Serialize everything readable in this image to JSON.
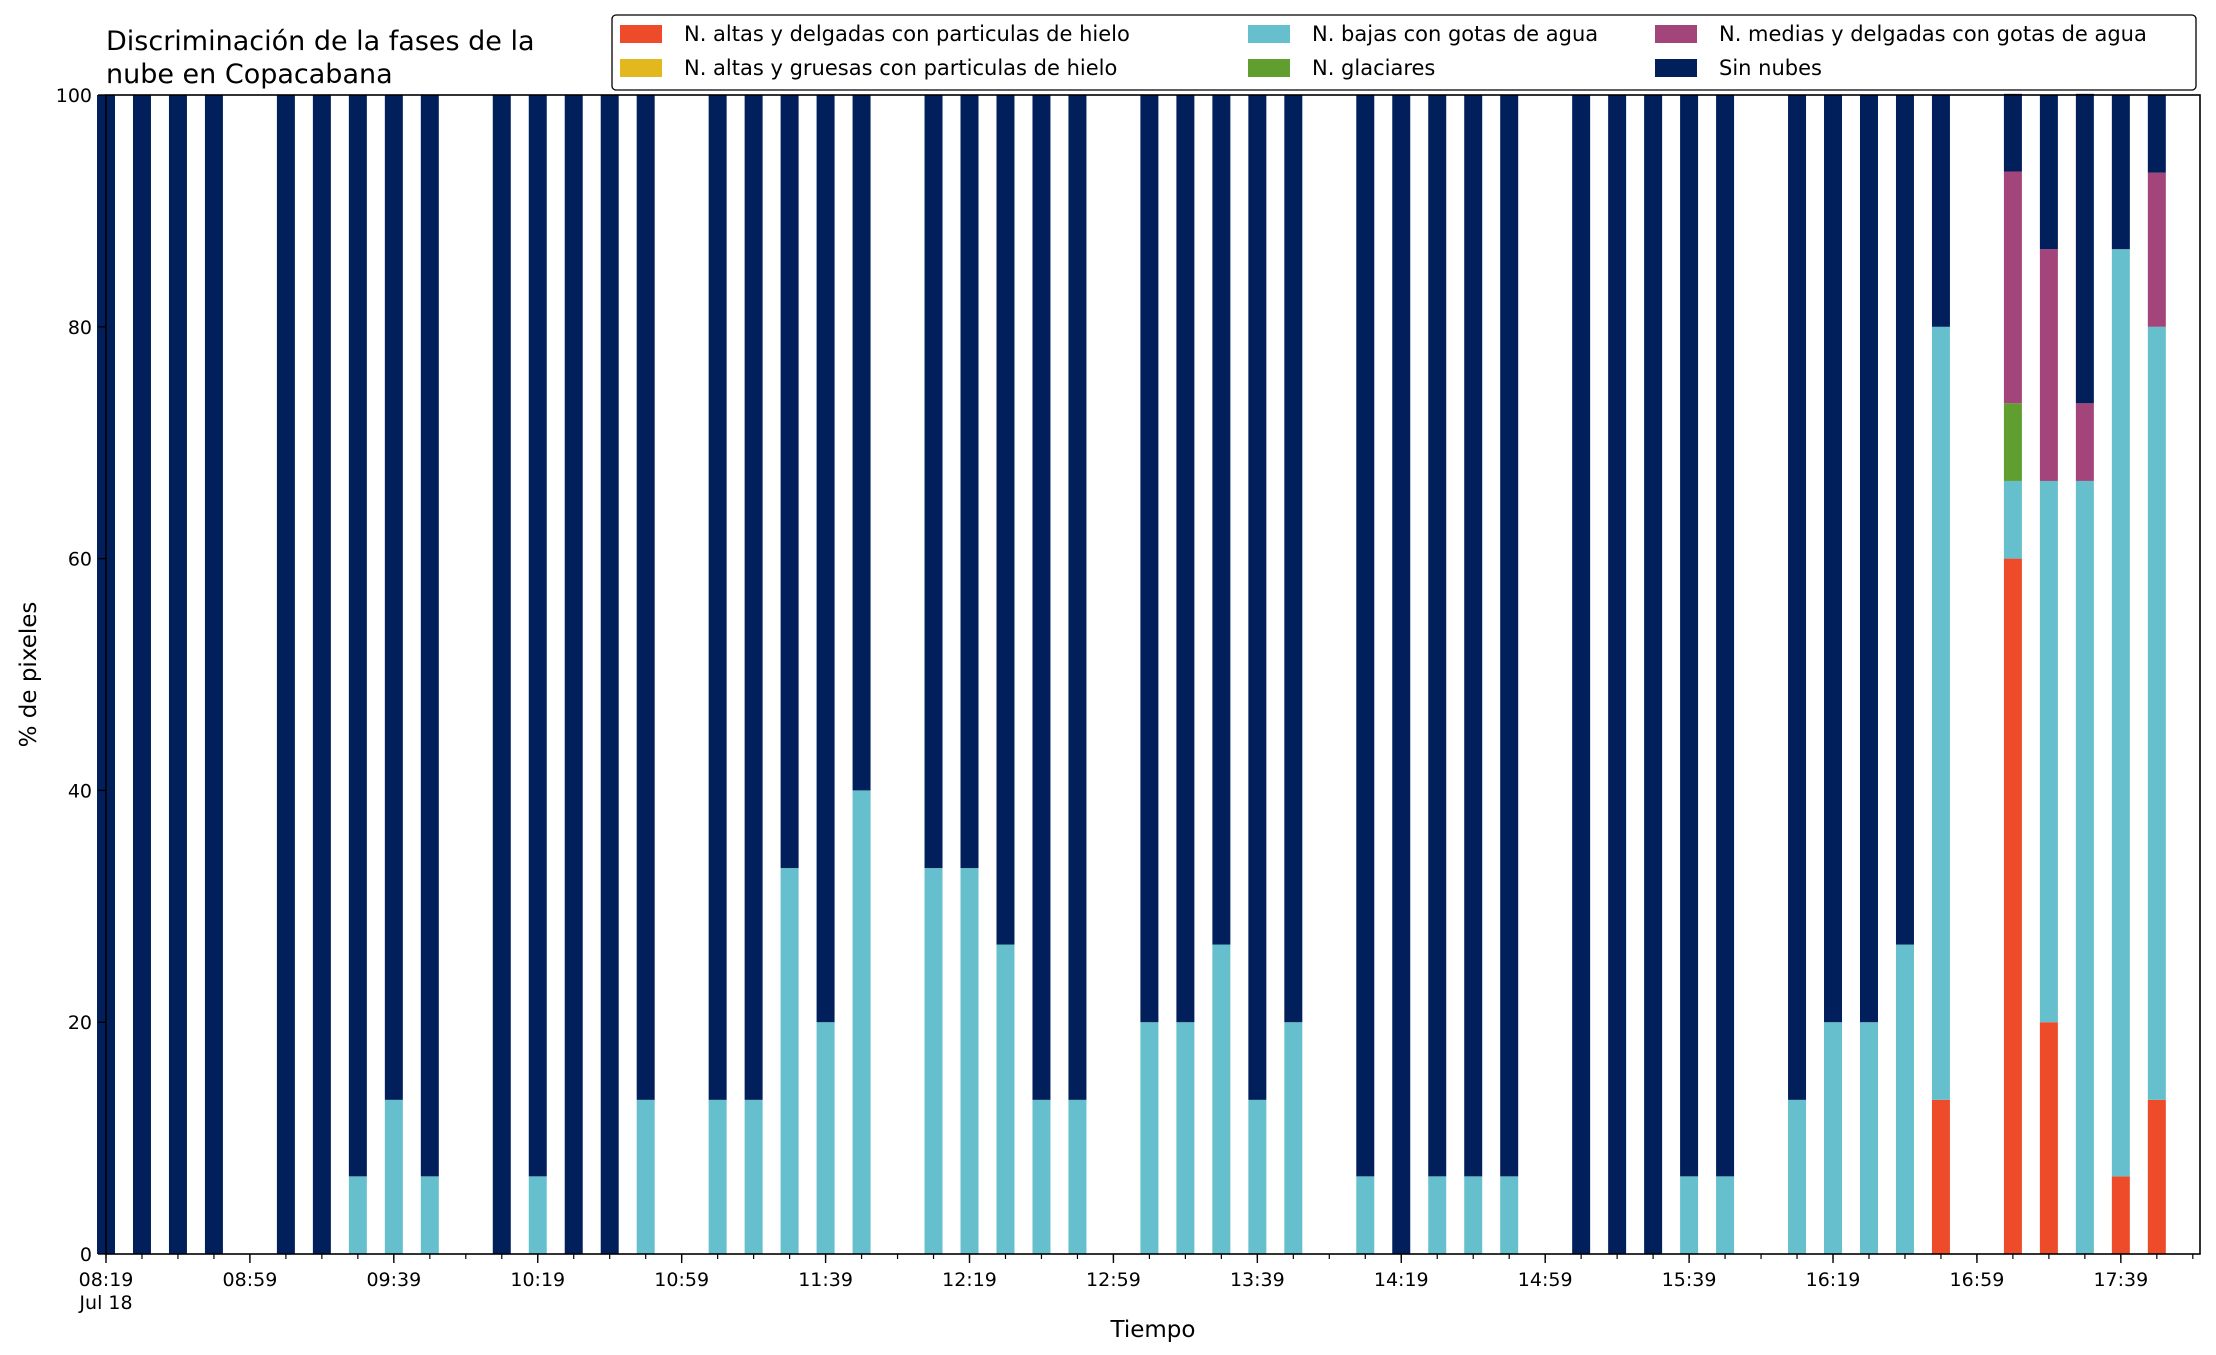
{
  "chart_data": {
    "type": "bar",
    "stacked": true,
    "title_lines": [
      "Discriminación de la fases de la",
      "nube en Copacabana"
    ],
    "xlabel": "Tiempo",
    "ylabel": "% de pixeles",
    "ylim": [
      0,
      100
    ],
    "yticks": [
      0,
      20,
      40,
      60,
      80,
      100
    ],
    "xlim": [
      "08:19",
      "18:01"
    ],
    "xtick_labels": [
      {
        "time": "08:19",
        "lines": [
          "08:19",
          "Jul 18"
        ]
      },
      {
        "time": "08:59",
        "lines": [
          "08:59"
        ]
      },
      {
        "time": "09:39",
        "lines": [
          "09:39"
        ]
      },
      {
        "time": "10:19",
        "lines": [
          "10:19"
        ]
      },
      {
        "time": "10:59",
        "lines": [
          "10:59"
        ]
      },
      {
        "time": "11:39",
        "lines": [
          "11:39"
        ]
      },
      {
        "time": "12:19",
        "lines": [
          "12:19"
        ]
      },
      {
        "time": "12:59",
        "lines": [
          "12:59"
        ]
      },
      {
        "time": "13:39",
        "lines": [
          "13:39"
        ]
      },
      {
        "time": "14:19",
        "lines": [
          "14:19"
        ]
      },
      {
        "time": "14:59",
        "lines": [
          "14:59"
        ]
      },
      {
        "time": "15:39",
        "lines": [
          "15:39"
        ]
      },
      {
        "time": "16:19",
        "lines": [
          "16:19"
        ]
      },
      {
        "time": "16:59",
        "lines": [
          "16:59"
        ]
      },
      {
        "time": "17:39",
        "lines": [
          "17:39"
        ]
      }
    ],
    "minor_tick_interval_minutes": 10,
    "grid": false,
    "legend_position": "top",
    "x": [
      "08:19",
      "08:29",
      "08:39",
      "08:49",
      "09:09",
      "09:19",
      "09:29",
      "09:39",
      "09:49",
      "10:09",
      "10:19",
      "10:29",
      "10:39",
      "10:49",
      "11:09",
      "11:19",
      "11:29",
      "11:39",
      "11:49",
      "12:09",
      "12:19",
      "12:29",
      "12:39",
      "12:49",
      "13:09",
      "13:19",
      "13:29",
      "13:39",
      "13:49",
      "14:09",
      "14:19",
      "14:29",
      "14:39",
      "14:49",
      "15:09",
      "15:19",
      "15:29",
      "15:39",
      "15:49",
      "16:09",
      "16:19",
      "16:29",
      "16:39",
      "16:49",
      "17:09",
      "17:19",
      "17:29",
      "17:39",
      "17:49"
    ],
    "series": [
      {
        "name": "N. altas y delgadas con particulas de hielo",
        "color": "#ee4b2b",
        "values": [
          0,
          0,
          0,
          0,
          0,
          0,
          0,
          0,
          0,
          0,
          0,
          0,
          0,
          0,
          0,
          0,
          0,
          0,
          0,
          0,
          0,
          0,
          0,
          0,
          0,
          0,
          0,
          0,
          0,
          0,
          0,
          0,
          0,
          0,
          0,
          0,
          0,
          0,
          0,
          0,
          0,
          0,
          0,
          13.3,
          60,
          20,
          0,
          6.7,
          13.3
        ]
      },
      {
        "name": "N. altas y gruesas con particulas de hielo",
        "color": "#e3b81f",
        "values": [
          0,
          0,
          0,
          0,
          0,
          0,
          0,
          0,
          0,
          0,
          0,
          0,
          0,
          0,
          0,
          0,
          0,
          0,
          0,
          0,
          0,
          0,
          0,
          0,
          0,
          0,
          0,
          0,
          0,
          0,
          0,
          0,
          0,
          0,
          0,
          0,
          0,
          0,
          0,
          0,
          0,
          0,
          0,
          0,
          0,
          0,
          0,
          0,
          0
        ]
      },
      {
        "name": "N. bajas con gotas de agua",
        "color": "#66bfcc",
        "values": [
          0,
          0,
          0,
          0,
          0,
          0,
          6.7,
          13.3,
          6.7,
          0,
          6.7,
          0,
          0,
          13.3,
          13.3,
          13.3,
          33.3,
          20,
          40,
          33.3,
          33.3,
          26.7,
          13.3,
          13.3,
          20,
          20,
          26.7,
          13.3,
          20,
          6.7,
          0,
          6.7,
          6.7,
          6.7,
          0,
          0,
          0,
          6.7,
          6.7,
          13.3,
          20,
          20,
          26.7,
          66.7,
          6.7,
          46.7,
          66.7,
          80,
          66.7
        ]
      },
      {
        "name": "N. glaciares",
        "color": "#5f9e2f",
        "values": [
          0,
          0,
          0,
          0,
          0,
          0,
          0,
          0,
          0,
          0,
          0,
          0,
          0,
          0,
          0,
          0,
          0,
          0,
          0,
          0,
          0,
          0,
          0,
          0,
          0,
          0,
          0,
          0,
          0,
          0,
          0,
          0,
          0,
          0,
          0,
          0,
          0,
          0,
          0,
          0,
          0,
          0,
          0,
          0,
          6.7,
          0,
          0,
          0,
          0
        ]
      },
      {
        "name": "N. medias y delgadas con gotas de agua",
        "color": "#a3457a",
        "values": [
          0,
          0,
          0,
          0,
          0,
          0,
          0,
          0,
          0,
          0,
          0,
          0,
          0,
          0,
          0,
          0,
          0,
          0,
          0,
          0,
          0,
          0,
          0,
          0,
          0,
          0,
          0,
          0,
          0,
          0,
          0,
          0,
          0,
          0,
          0,
          0,
          0,
          0,
          0,
          0,
          0,
          0,
          0,
          0,
          20,
          20,
          6.7,
          0,
          13.3
        ]
      },
      {
        "name": "Sin nubes",
        "color": "#011f5b",
        "values": [
          100,
          100,
          100,
          100,
          100,
          100,
          93.3,
          86.7,
          93.3,
          100,
          93.3,
          100,
          100,
          86.7,
          86.7,
          86.7,
          66.7,
          80,
          60,
          66.7,
          66.7,
          73.3,
          86.7,
          86.7,
          80,
          80,
          73.3,
          86.7,
          80,
          93.3,
          100,
          93.3,
          93.3,
          93.3,
          100,
          100,
          100,
          93.3,
          93.3,
          86.7,
          80,
          80,
          73.3,
          20,
          6.7,
          13.3,
          26.7,
          13.3,
          6.7
        ]
      }
    ],
    "legend_columns": [
      [
        "N. altas y delgadas con particulas de hielo",
        "N. altas y gruesas con particulas de hielo"
      ],
      [
        "N. bajas con gotas de agua",
        "N. glaciares"
      ],
      [
        "N. medias y delgadas con gotas de agua",
        "Sin nubes"
      ]
    ]
  }
}
